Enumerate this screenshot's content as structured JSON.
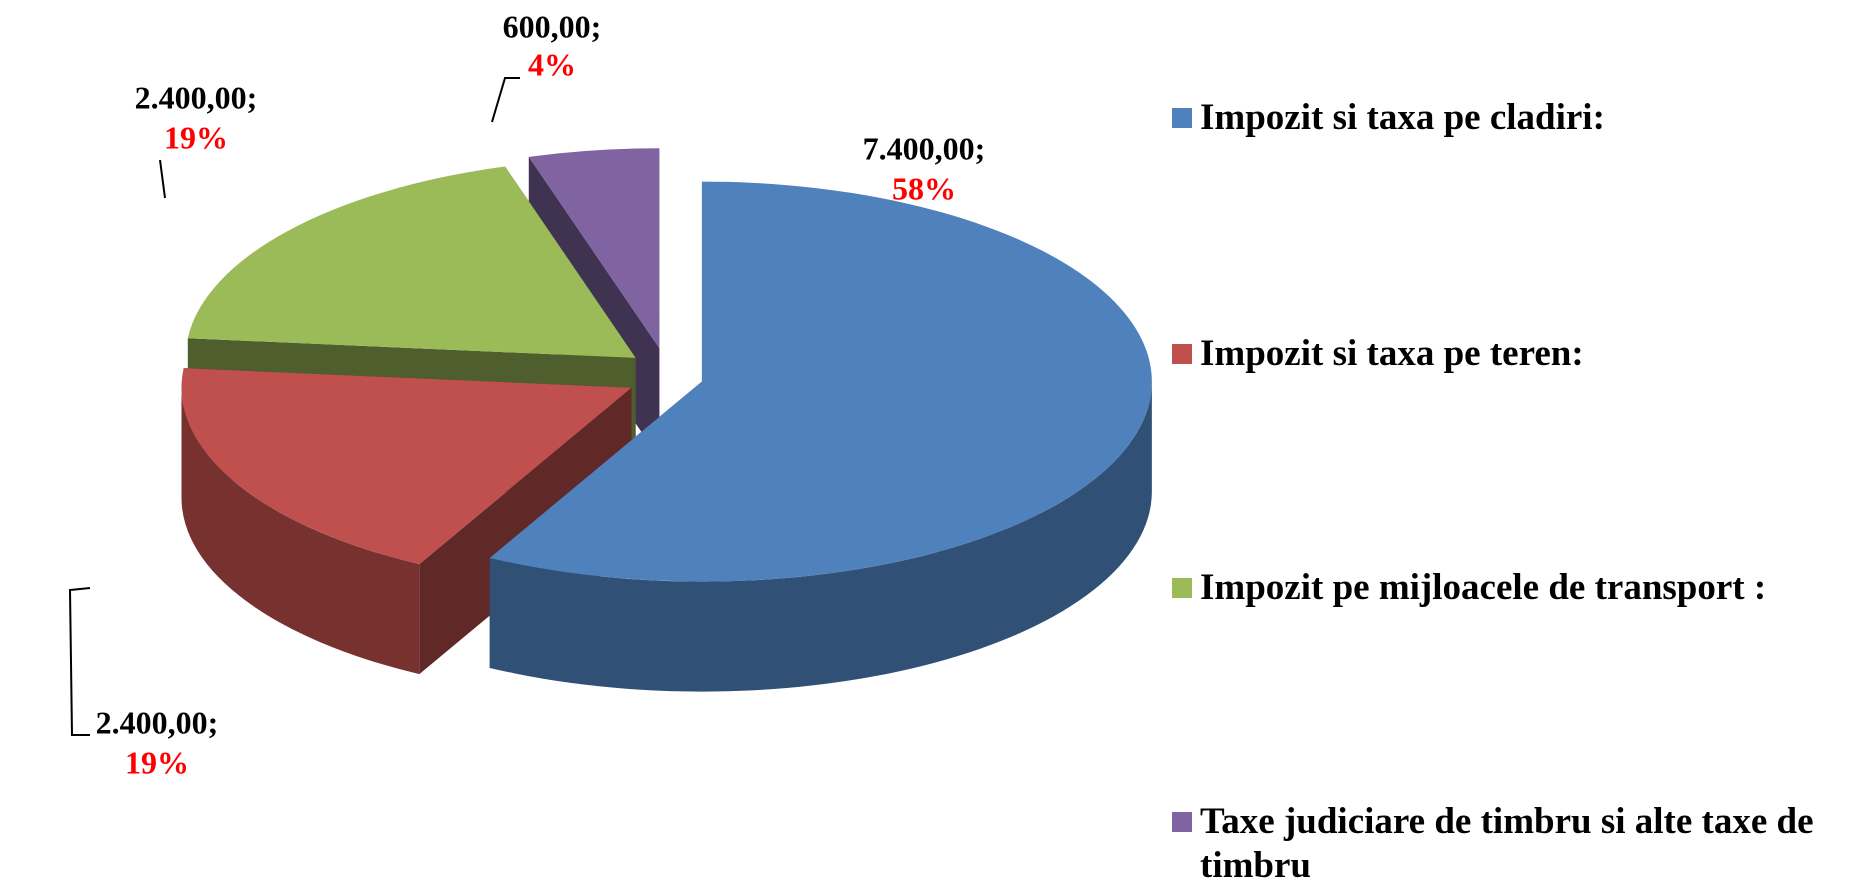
{
  "chart_data": {
    "type": "pie",
    "categories": [
      "Impozit si taxa pe cladiri:",
      "Impozit si taxa pe teren:",
      "Impozit pe mijloacele de transport :",
      "Taxe judiciare de timbru si alte taxe de timbru"
    ],
    "values": [
      7400,
      2400,
      2400,
      600
    ],
    "value_labels": [
      "7.400,00;",
      "2.400,00;",
      "2.400,00;",
      "600,00;"
    ],
    "percents": [
      58,
      19,
      19,
      4
    ],
    "percent_labels": [
      "58%",
      "19%",
      "19%",
      "4%"
    ],
    "colors": [
      "#4f81bd",
      "#c0504d",
      "#9bbb59",
      "#8064a2"
    ],
    "explode": true,
    "style_3d": true,
    "legend": "right"
  }
}
